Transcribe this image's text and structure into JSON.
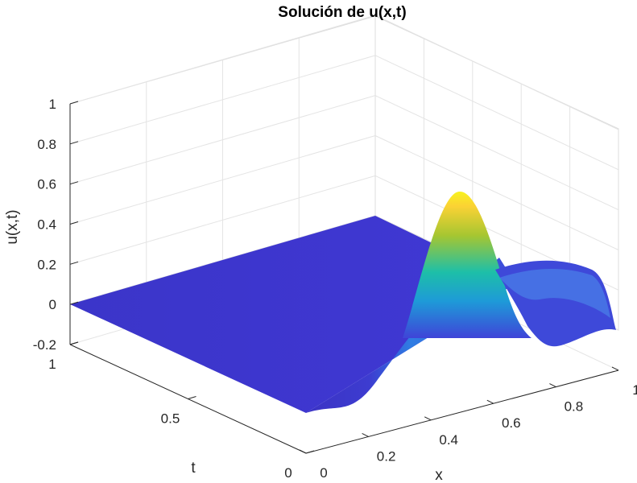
{
  "chart_data": {
    "type": "surface",
    "title": "Solución de u(x,t)",
    "xlabel": "x",
    "ylabel": "t",
    "zlabel": "u(x,t)",
    "xlim": [
      0,
      1
    ],
    "ylim": [
      0,
      1
    ],
    "zlim": [
      -0.2,
      1
    ],
    "x_ticks": [
      "0",
      "0.2",
      "0.4",
      "0.6",
      "0.8",
      "1"
    ],
    "y_ticks": [
      "0",
      "0.5",
      "1"
    ],
    "z_ticks": [
      "-0.2",
      "0",
      "0.2",
      "0.4",
      "0.6",
      "0.8",
      "1"
    ],
    "grid": true,
    "colormap": "parula",
    "features": {
      "peak_u": 0.55,
      "peak_x": 0.72,
      "minimum_u": -0.18
    }
  }
}
